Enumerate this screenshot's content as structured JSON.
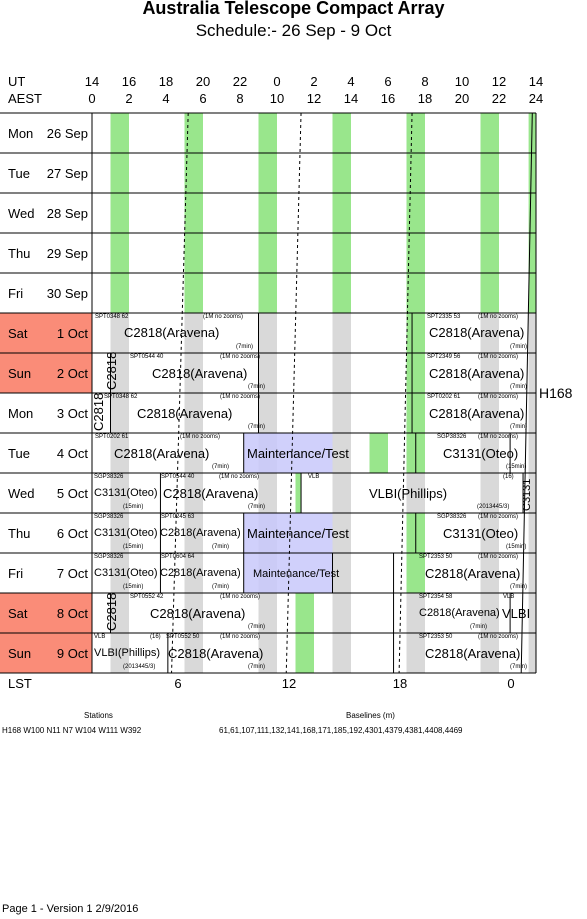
{
  "title": "Australia Telescope Compact Array",
  "subtitle": "Schedule:- 26 Sep - 9  Oct",
  "ut_label": "UT",
  "aest_label": "AEST",
  "lst_label": "LST",
  "ut_ticks": [
    "14",
    "16",
    "18",
    "20",
    "22",
    "0",
    "2",
    "4",
    "6",
    "8",
    "10",
    "12",
    "14"
  ],
  "aest_ticks": [
    "0",
    "2",
    "4",
    "6",
    "8",
    "10",
    "12",
    "14",
    "16",
    "18",
    "20",
    "22",
    "24"
  ],
  "lst_ticks": [
    "6",
    "12",
    "18",
    "0"
  ],
  "days": [
    {
      "dow": "Mon",
      "date": "26 Sep",
      "weekend": false
    },
    {
      "dow": "Tue",
      "date": "27 Sep",
      "weekend": false
    },
    {
      "dow": "Wed",
      "date": "28 Sep",
      "weekend": false
    },
    {
      "dow": "Thu",
      "date": "29 Sep",
      "weekend": false
    },
    {
      "dow": "Fri",
      "date": "30 Sep",
      "weekend": false
    },
    {
      "dow": "Sat",
      "date": "1  Oct",
      "weekend": true
    },
    {
      "dow": "Sun",
      "date": "2  Oct",
      "weekend": true
    },
    {
      "dow": "Mon",
      "date": "3  Oct",
      "weekend": false
    },
    {
      "dow": "Tue",
      "date": "4  Oct",
      "weekend": false
    },
    {
      "dow": "Wed",
      "date": "5  Oct",
      "weekend": false
    },
    {
      "dow": "Thu",
      "date": "6  Oct",
      "weekend": false
    },
    {
      "dow": "Fri",
      "date": "7  Oct",
      "weekend": false
    },
    {
      "dow": "Sat",
      "date": "8  Oct",
      "weekend": true
    },
    {
      "dow": "Sun",
      "date": "9  Oct",
      "weekend": true
    }
  ],
  "config_label": "H168",
  "labels": {
    "r5a_code": "SPT0348 62",
    "r5a_note": "(1M no zooms)",
    "r5a_main": "C2818(Aravena)",
    "r5a_min": "(7min)",
    "r5b_code": "SPT2335 53",
    "r5b_note": "(1M no zooms)",
    "r5b_main": "C2818(Aravena)",
    "r5b_min": "(7min)",
    "r6v": "C2818",
    "r6a_code": "SPT0544 40",
    "r6a_note": "(1M no zooms)",
    "r6a_main": "C2818(Aravena)",
    "r6a_min": "(7min)",
    "r6b_code": "SPT2349 56",
    "r6b_note": "(1M no zooms)",
    "r6b_main": "C2818(Aravena)",
    "r6b_min": "(7min)",
    "r7v": "C2818",
    "r7a_code": "SPT0348 62",
    "r7a_note": "(1M no zooms)",
    "r7a_main": "C2818(Aravena)",
    "r7a_min": "(7min)",
    "r7b_code": "SPT0202 61",
    "r7b_note": "(1M no zooms)",
    "r7b_main": "C2818(Aravena)",
    "r7b_min": "(7min)",
    "r8a_code": "SPT0202 61",
    "r8a_note": "(1M no zooms)",
    "r8a_main": "C2818(Aravena)",
    "r8a_min": "(7min)",
    "r8b_main": "Maintenance/Test",
    "r8c_code": "SGP38326",
    "r8c_note": "(1M no zooms)",
    "r8c_main": "C3131(Oteo)",
    "r8c_min": "(15min)",
    "r9a_code": "SGP38326",
    "r9a_main": "C3131(Oteo)",
    "r9a_min": "(15min)",
    "r9b_code": "SPT0544 40",
    "r9b_note": "(1M no zooms)",
    "r9b_main": "C2818(Aravena)",
    "r9b_min": "(7min)",
    "r9c_code": "VLB",
    "r9c_main": "VLBI(Phillips)",
    "r9c_note": "(16)",
    "r9c_min": "(2013445/3)",
    "r9v": "C3131",
    "r10a_code": "SGP38326",
    "r10a_main": "C3131(Oteo)",
    "r10a_min": "(15min)",
    "r10b_code": "SPT0245 63",
    "r10b_main": "C2818(Aravena)",
    "r10b_min": "(7min)",
    "r10c_main": "Maintenance/Test",
    "r10d_code": "SGP38326",
    "r10d_note": "(1M no zooms)",
    "r10d_main": "C3131(Oteo)",
    "r10d_min": "(15min)",
    "r11a_code": "SGP38326",
    "r11a_main": "C3131(Oteo)",
    "r11a_min": "(15min)",
    "r11b_code": "SPT0604 64",
    "r11b_main": "C2818(Aravena)",
    "r11b_min": "(7min)",
    "r11c_main": "Maintenance/Test",
    "r11d_code": "SPT2353 50",
    "r11d_note": "(1M no zooms)",
    "r11d_main": "C2818(Aravena)",
    "r11d_min": "(7min)",
    "r12v": "C2818",
    "r12a_code": "SPT0552 42",
    "r12a_note": "(1M no zooms)",
    "r12a_main": "C2818(Aravena)",
    "r12a_min": "(7min)",
    "r12b_code": "SPT2354 58",
    "r12b_main": "C2818(Aravena)",
    "r12b_min": "(7min)",
    "r12c_code": "VLB",
    "r12c_main": "VLBI",
    "r13a_code": "VLB",
    "r13a_note": "(16)",
    "r13a_main": "VLBI(Phillips)",
    "r13a_min": "(2013445/3)",
    "r13b_code": "SPT0552 50",
    "r13b_note": "(1M no zooms)",
    "r13b_main": "C2818(Aravena)",
    "r13b_min": "(7min)",
    "r13c_code": "SPT2353 50",
    "r13c_note": "(1M no zooms)",
    "r13c_main": "C2818(Aravena)",
    "r13c_min": "(7min)"
  },
  "footer": {
    "stations_title": "Stations",
    "stations": "H168   W100  N11  N7  W104  W111  W392",
    "baselines_title": "Baselines (m)",
    "baselines": "61,61,107,111,132,141,168,171,185,192,4301,4379,4381,4408,4469",
    "page": "Page 1 - Version 1  2/9/2016"
  },
  "colors": {
    "green": "#99e68c",
    "gray": "#d9d9d9",
    "blue": "#c8c8fa",
    "weekend": "#fa8c78"
  }
}
